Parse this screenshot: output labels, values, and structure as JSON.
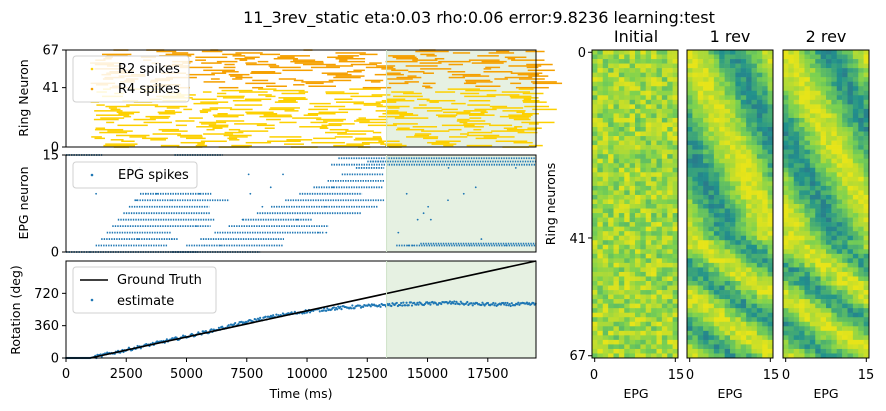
{
  "figure": {
    "title": "11_3rev_static eta:0.03 rho:0.06 error:9.8236 learning:test"
  },
  "colors": {
    "r2": "#fdd000",
    "r4": "#f5a000",
    "epg": "#1f77b4",
    "truth": "#000000",
    "shade": "#e6f1e2",
    "heat_low": "#3d4d8a",
    "heat_mid": "#21918c",
    "heat_high": "#e7e419"
  },
  "chart_data": [
    {
      "type": "scatter",
      "panel": "ring-raster",
      "ylabel": "Ring Neuron",
      "yticks": [
        "0",
        "41",
        "67"
      ],
      "ylim": [
        0,
        67
      ],
      "xlim": [
        0,
        19500
      ],
      "shaded_x": [
        13300,
        19500
      ],
      "legend": {
        "placement": "top-left",
        "entries": [
          "R2 spikes",
          "R4 spikes"
        ]
      },
      "series": [
        {
          "name": "R2 spikes",
          "y_range": [
            0,
            41
          ],
          "x_range": [
            1000,
            19500
          ]
        },
        {
          "name": "R4 spikes",
          "y_range": [
            41,
            67
          ],
          "x_range": [
            1000,
            19500
          ]
        }
      ]
    },
    {
      "type": "scatter",
      "panel": "epg-raster",
      "ylabel": "EPG neuron",
      "yticks": [
        "0",
        "15"
      ],
      "ylim": [
        0,
        15
      ],
      "xlim": [
        0,
        19500
      ],
      "shaded_x": [
        13300,
        19500
      ],
      "legend": {
        "placement": "top-left",
        "entries": [
          "EPG spikes"
        ]
      },
      "series": [
        {
          "name": "EPG spikes",
          "sweeps": [
            {
              "x_start": 0,
              "x_end": 1000,
              "y": 0
            },
            {
              "x_start": 1000,
              "x_end": 3300,
              "y_from": 0,
              "y_to": 9
            },
            {
              "x_start": 4400,
              "x_end": 13200,
              "y_from": 0,
              "y_to": 14
            }
          ],
          "after_shade": {
            "x_start": 13300,
            "x_end": 19500,
            "y_values": [
              1,
              14
            ]
          }
        }
      ]
    },
    {
      "type": "line",
      "panel": "rotation",
      "xlabel": "Time (ms)",
      "ylabel": "Rotation (deg)",
      "xticks": [
        "0",
        "2500",
        "5000",
        "7500",
        "10000",
        "12500",
        "15000",
        "17500"
      ],
      "xtick_values": [
        0,
        2500,
        5000,
        7500,
        10000,
        12500,
        15000,
        17500
      ],
      "yticks": [
        "0",
        "360",
        "720"
      ],
      "ytick_values": [
        0,
        360,
        720
      ],
      "xlim": [
        0,
        19500
      ],
      "ylim": [
        0,
        1080
      ],
      "shaded_x": [
        13300,
        19500
      ],
      "legend": {
        "placement": "top-left",
        "entries": [
          "Ground Truth",
          "estimate"
        ]
      },
      "series": [
        {
          "name": "Ground Truth",
          "x": [
            0,
            1000,
            19500
          ],
          "y": [
            0,
            0,
            1080
          ]
        },
        {
          "name": "estimate",
          "x": [
            0,
            1000,
            2000,
            3000,
            4000,
            5000,
            6000,
            7000,
            8000,
            9000,
            10000,
            11000,
            12000,
            13300,
            14000,
            15000,
            16000,
            17000,
            18000,
            19500
          ],
          "y": [
            0,
            0,
            60,
            120,
            180,
            240,
            300,
            370,
            430,
            480,
            520,
            550,
            570,
            590,
            600,
            605,
            615,
            600,
            595,
            600
          ]
        }
      ]
    },
    {
      "type": "heatmap",
      "panel": "weights",
      "ylabel": "Ring neurons",
      "yticks": [
        "0",
        "41",
        "67"
      ],
      "rows": 68,
      "cols": 16,
      "subplots": [
        {
          "title": "Initial",
          "xlabel": "EPG",
          "xticks": [
            "0",
            "15"
          ]
        },
        {
          "title": "1 rev",
          "xlabel": "EPG",
          "xticks": [
            "0",
            "15"
          ]
        },
        {
          "title": "2 rev",
          "xlabel": "EPG",
          "xticks": [
            "0",
            "15"
          ]
        }
      ]
    }
  ]
}
